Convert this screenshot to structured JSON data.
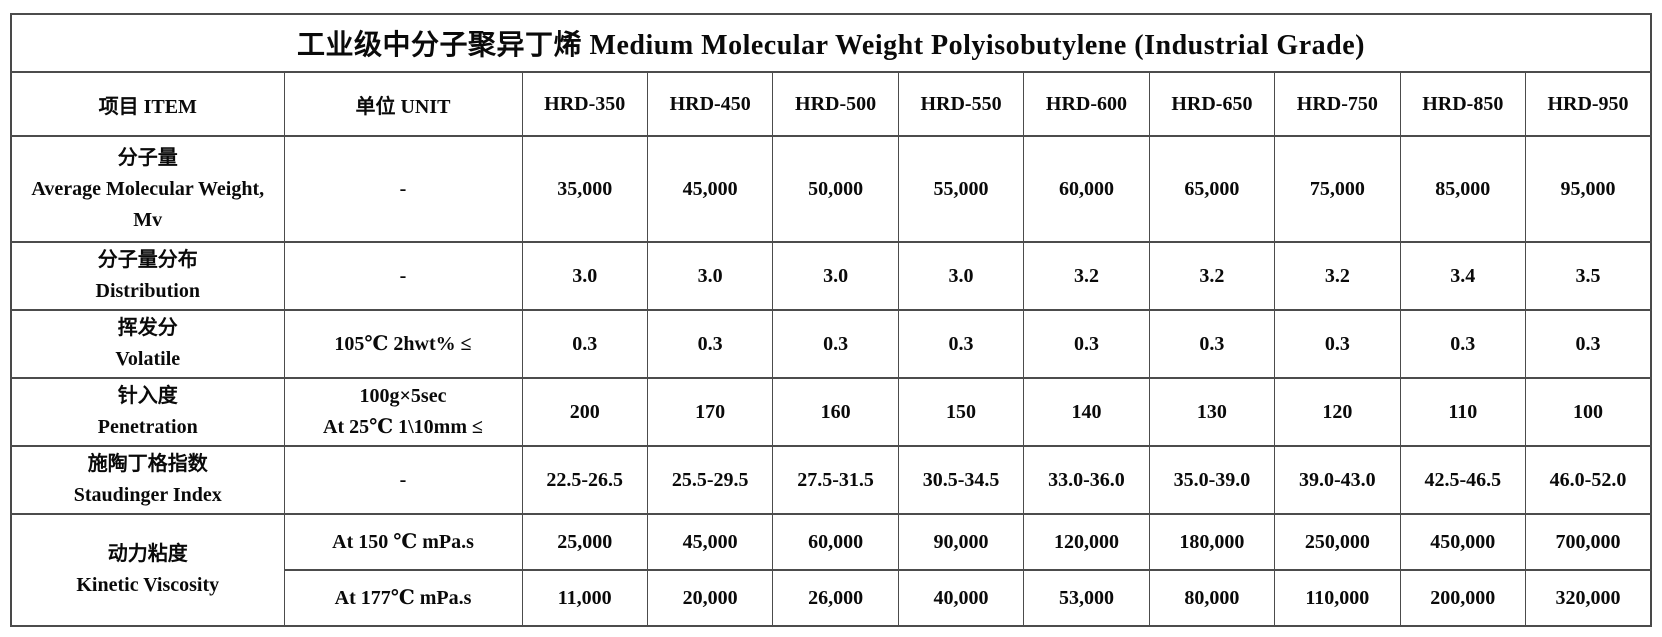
{
  "page": {
    "title": "工业级中分子聚异丁烯  Medium Molecular Weight Polyisobutylene (Industrial Grade)"
  },
  "table": {
    "header": {
      "item": "项目 ITEM",
      "unit": "单位  UNIT",
      "grades": [
        "HRD-350",
        "HRD-450",
        "HRD-500",
        "HRD-550",
        "HRD-600",
        "HRD-650",
        "HRD-750",
        "HRD-850",
        "HRD-950"
      ]
    },
    "rows": [
      {
        "id": "average-molecular-weight",
        "item_lines": [
          "分子量",
          "Average Molecular Weight,",
          "Mv"
        ],
        "unit_lines": [
          "-"
        ],
        "values": [
          "35,000",
          "45,000",
          "50,000",
          "55,000",
          "60,000",
          "65,000",
          "75,000",
          "85,000",
          "95,000"
        ]
      },
      {
        "id": "distribution",
        "item_lines": [
          "分子量分布",
          "Distribution"
        ],
        "unit_lines": [
          "-"
        ],
        "values": [
          "3.0",
          "3.0",
          "3.0",
          "3.0",
          "3.2",
          "3.2",
          "3.2",
          "3.4",
          "3.5"
        ]
      },
      {
        "id": "volatile",
        "item_lines": [
          "挥发分",
          "Volatile"
        ],
        "unit_lines": [
          "105℃ 2hwt%  ≤"
        ],
        "values": [
          "0.3",
          "0.3",
          "0.3",
          "0.3",
          "0.3",
          "0.3",
          "0.3",
          "0.3",
          "0.3"
        ]
      },
      {
        "id": "penetration",
        "item_lines": [
          "针入度",
          "Penetration"
        ],
        "unit_lines": [
          "100g×5sec",
          "At 25℃  1\\10mm ≤"
        ],
        "values": [
          "200",
          "170",
          "160",
          "150",
          "140",
          "130",
          "120",
          "110",
          "100"
        ]
      },
      {
        "id": "staudinger-index",
        "item_lines": [
          "施陶丁格指数",
          "Staudinger Index"
        ],
        "unit_lines": [
          "-"
        ],
        "values": [
          "22.5-26.5",
          "25.5-29.5",
          "27.5-31.5",
          "30.5-34.5",
          "33.0-36.0",
          "35.0-39.0",
          "39.0-43.0",
          "42.5-46.5",
          "46.0-52.0"
        ]
      }
    ],
    "viscosity": {
      "item_lines": [
        "动力粘度",
        "Kinetic Viscosity"
      ],
      "sub_rows": [
        {
          "unit": "At 150 ℃ mPa.s",
          "values": [
            "25,000",
            "45,000",
            "60,000",
            "90,000",
            "120,000",
            "180,000",
            "250,000",
            "450,000",
            "700,000"
          ]
        },
        {
          "unit": "At 177℃  mPa.s",
          "values": [
            "11,000",
            "20,000",
            "26,000",
            "40,000",
            "53,000",
            "80,000",
            "110,000",
            "200,000",
            "320,000"
          ]
        }
      ]
    }
  }
}
